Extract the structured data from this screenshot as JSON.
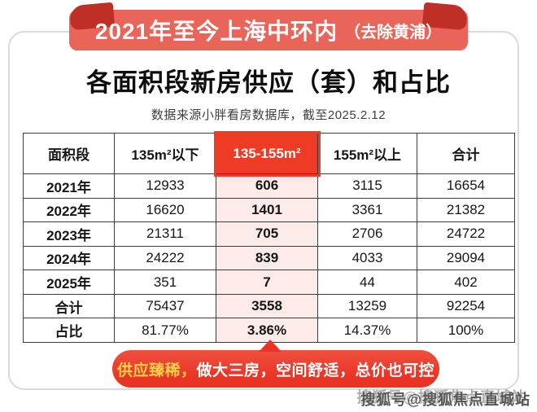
{
  "ribbon": {
    "main": "2021年至今上海中环内",
    "paren": "（去除黄浦）"
  },
  "chart_data": {
    "type": "table",
    "banner": "2021年至今上海中环内（去除黄浦）",
    "title": "各面积段新房供应（套）和占比",
    "source_note": "数据来源小胖看房数据库，截至2025.2.12",
    "columns": [
      "面积段",
      "135m²以下",
      "135-155m²",
      "155m²以上",
      "合计"
    ],
    "highlight_column": "135-155m²",
    "highlight_column_index": 2,
    "rows": [
      {
        "label": "2021年",
        "values": [
          "12933",
          "606",
          "3115",
          "16654"
        ]
      },
      {
        "label": "2022年",
        "values": [
          "16620",
          "1401",
          "3361",
          "21382"
        ]
      },
      {
        "label": "2023年",
        "values": [
          "21311",
          "705",
          "2706",
          "24722"
        ]
      },
      {
        "label": "2024年",
        "values": [
          "24222",
          "839",
          "4033",
          "29094"
        ]
      },
      {
        "label": "2025年",
        "values": [
          "351",
          "7",
          "44",
          "402"
        ]
      },
      {
        "label": "合计",
        "values": [
          "75437",
          "3558",
          "13259",
          "92254"
        ]
      },
      {
        "label": "占比",
        "values": [
          "81.77%",
          "3.86%",
          "14.37%",
          "100%"
        ]
      }
    ]
  },
  "callout": {
    "highlight_text": "供应臻稀，",
    "rest_text": "做大三房，空间舒适，总价也可控"
  },
  "watermark": "搜狐号@搜狐焦点直城站",
  "colors": {
    "ribbon_red": "#e96459",
    "ribbon_fold_red": "#bf2f26",
    "highlight_red": "#ee3b26",
    "highlight_pink": "#fcebe9",
    "callout_red": "#e93325",
    "callout_gold": "#fcd24b",
    "table_border": "#3d3d3d",
    "card_border": "#dadada"
  }
}
